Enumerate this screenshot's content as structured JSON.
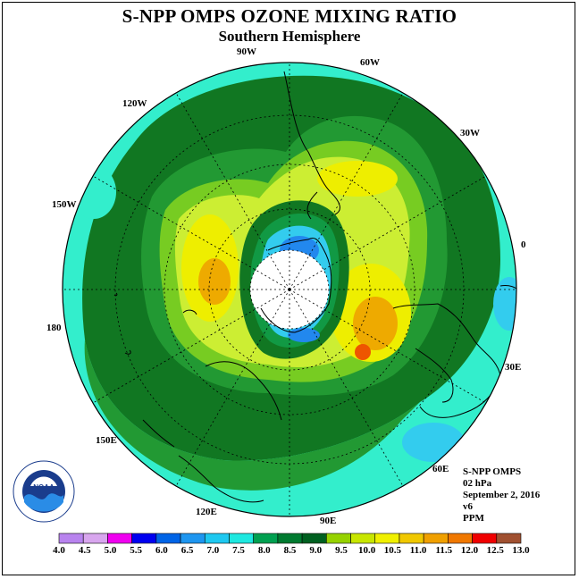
{
  "title": "S-NPP OMPS OZONE MIXING RATIO",
  "subtitle": "Southern Hemisphere",
  "longitude_labels": {
    "w90": "90W",
    "w60": "60W",
    "w30": "30W",
    "e0": "0",
    "e30": "30E",
    "e60": "60E",
    "e90": "90E",
    "e120": "120E",
    "e150": "150E",
    "e180": "180",
    "w150": "150W",
    "w120": "120W"
  },
  "info": {
    "instrument": "S-NPP OMPS",
    "level": "02 hPa",
    "date": "September 2, 2016",
    "version": "v6",
    "units": "PPM"
  },
  "logo": {
    "text": "NOAA"
  },
  "colorbar": {
    "ticks": [
      "4.0",
      "4.5",
      "5.0",
      "5.5",
      "6.0",
      "6.5",
      "7.0",
      "7.5",
      "8.0",
      "8.5",
      "9.0",
      "9.5",
      "10.0",
      "10.5",
      "11.0",
      "11.5",
      "12.0",
      "12.5",
      "13.0"
    ],
    "colors": [
      "#b883ee",
      "#d8a6ee",
      "#f000f0",
      "#0000f0",
      "#0064e6",
      "#1e96f0",
      "#1ec8f0",
      "#1ee8e0",
      "#00a050",
      "#007a30",
      "#006020",
      "#96d200",
      "#c8e600",
      "#f0f000",
      "#f0c800",
      "#f0a000",
      "#f07800",
      "#f00000",
      "#a05030"
    ]
  },
  "map_fills": {
    "background": "#33eecc",
    "outer_band": "#117722",
    "ring2": "#229933",
    "ring3": "#77cc22",
    "ring4": "#ccee33",
    "peak_yellow": "#eeee00",
    "peak_orange": "#eeaa00",
    "peak_red": "#ee5500",
    "vortex_green": "#119944",
    "vortex_cyan": "#33ccee",
    "vortex_blue": "#2288ee",
    "polar_hole": "#ffffff",
    "land_outline": "#000000"
  }
}
